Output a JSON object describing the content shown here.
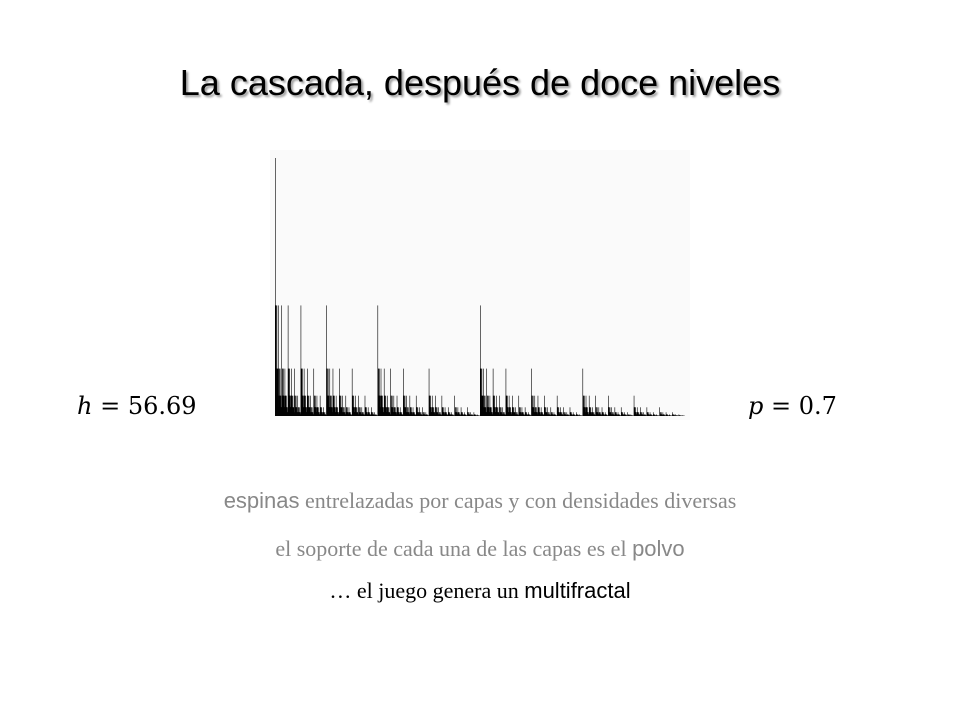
{
  "slide": {
    "title": "La cascada, después de doce niveles",
    "params": {
      "h_var": "h",
      "h_eq": "=",
      "h_value": "56.69",
      "p_var": "p",
      "p_eq": "=",
      "p_value": "0.7"
    },
    "lines": [
      {
        "pre": "",
        "sans": "espinas",
        "post": " entrelazadas por capas y con densidades diversas"
      },
      {
        "pre": "el soporte de cada una de las capas es el ",
        "sans": "polvo",
        "post": ""
      },
      {
        "pre": "… el juego genera un ",
        "sans": "multifractal",
        "post": ""
      }
    ]
  },
  "chart_data": {
    "type": "bar",
    "levels": 12,
    "p": 0.7,
    "max_height": 56.69,
    "bar_color": "#000000",
    "background_color": "#fafafa"
  }
}
